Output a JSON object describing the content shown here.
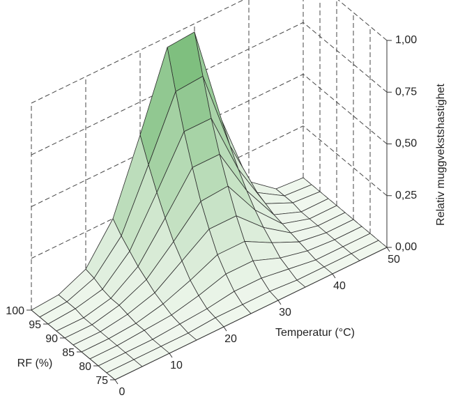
{
  "chart_data": {
    "type": "surface",
    "xlabel": "Temperatur (°C)",
    "ylabel": "RF (%)",
    "zlabel": "Relativ muggvekstshastighet",
    "x": [
      0,
      5,
      10,
      15,
      20,
      25,
      30,
      35,
      40,
      45,
      50
    ],
    "y": [
      75,
      77.5,
      80,
      82.5,
      85,
      87.5,
      90,
      92.5,
      95,
      97.5,
      100
    ],
    "z": [
      [
        0,
        0,
        0,
        0,
        0,
        0,
        0,
        0,
        0,
        0,
        0
      ],
      [
        0,
        0,
        0,
        0,
        0.01,
        0.01,
        0.01,
        0,
        0,
        0,
        0
      ],
      [
        0,
        0,
        0,
        0.01,
        0.02,
        0.04,
        0.04,
        0.02,
        0,
        0,
        0
      ],
      [
        0,
        0,
        0.01,
        0.02,
        0.05,
        0.09,
        0.09,
        0.04,
        0.01,
        0,
        0
      ],
      [
        0,
        0,
        0.01,
        0.04,
        0.09,
        0.15,
        0.15,
        0.08,
        0.02,
        0,
        0
      ],
      [
        0,
        0,
        0.02,
        0.06,
        0.15,
        0.24,
        0.24,
        0.12,
        0.03,
        0,
        0
      ],
      [
        0,
        0,
        0.03,
        0.09,
        0.21,
        0.34,
        0.35,
        0.17,
        0.04,
        0,
        0
      ],
      [
        0,
        0,
        0.03,
        0.12,
        0.29,
        0.47,
        0.47,
        0.23,
        0.05,
        0,
        0
      ],
      [
        0,
        0.01,
        0.04,
        0.16,
        0.38,
        0.61,
        0.61,
        0.3,
        0.07,
        0.01,
        0
      ],
      [
        0,
        0.01,
        0.06,
        0.2,
        0.48,
        0.77,
        0.78,
        0.38,
        0.09,
        0.01,
        0
      ],
      [
        0,
        0.01,
        0.07,
        0.25,
        0.59,
        0.95,
        0.96,
        0.47,
        0.11,
        0.01,
        0
      ]
    ],
    "xlim": [
      0,
      50
    ],
    "xticks": [
      0,
      10,
      20,
      30,
      40,
      50
    ],
    "ylim": [
      75,
      100
    ],
    "yticks": [
      75,
      80,
      85,
      90,
      95,
      100
    ],
    "zlim": [
      0,
      1
    ],
    "zticks": [
      {
        "value": 0,
        "label": "0,00"
      },
      {
        "value": 0.25,
        "label": "0,25"
      },
      {
        "value": 0.5,
        "label": "0,50"
      },
      {
        "value": 0.75,
        "label": "0,75"
      },
      {
        "value": 1,
        "label": "1,00"
      }
    ],
    "color": "#7fbf7f",
    "grid": true
  }
}
